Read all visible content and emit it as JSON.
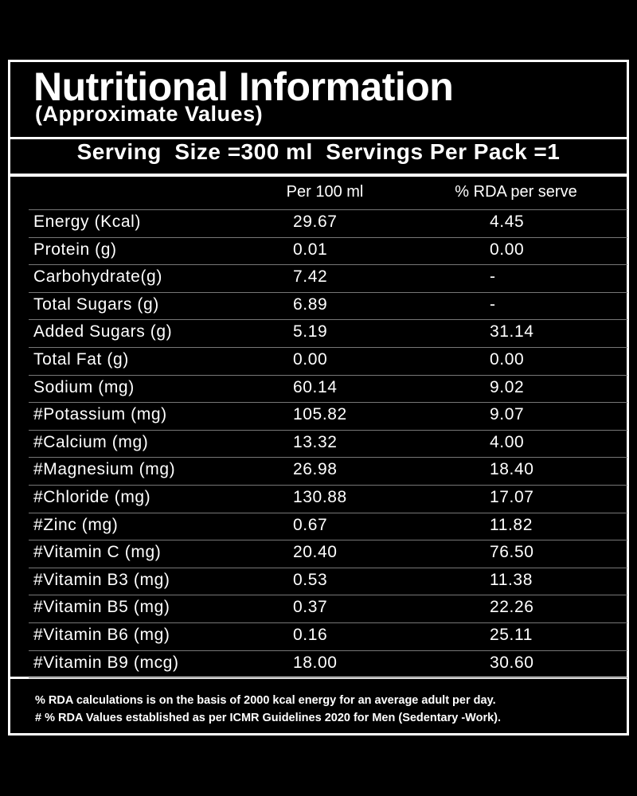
{
  "header": {
    "title": "Nutritional Information",
    "subtitle": "(Approximate Values)"
  },
  "serving": "Serving  Size =300 ml  Servings Per Pack =1",
  "table": {
    "columns": [
      "Per 100 ml",
      "% RDA per serve"
    ],
    "rows": [
      [
        "Energy (Kcal)",
        "29.67",
        "4.45"
      ],
      [
        "Protein (g)",
        "0.01",
        "0.00"
      ],
      [
        "Carbohydrate(g)",
        "7.42",
        "-"
      ],
      [
        "Total Sugars (g)",
        "6.89",
        "-"
      ],
      [
        "Added Sugars (g)",
        "5.19",
        "31.14"
      ],
      [
        "Total Fat (g)",
        "0.00",
        "0.00"
      ],
      [
        "Sodium (mg)",
        "60.14",
        "9.02"
      ],
      [
        "#Potassium (mg)",
        "105.82",
        "9.07"
      ],
      [
        "#Calcium (mg)",
        "13.32",
        "4.00"
      ],
      [
        "#Magnesium (mg)",
        "26.98",
        "18.40"
      ],
      [
        "#Chloride (mg)",
        "130.88",
        "17.07"
      ],
      [
        "#Zinc (mg)",
        "0.67",
        "11.82"
      ],
      [
        "#Vitamin C (mg)",
        "20.40",
        "76.50"
      ],
      [
        "#Vitamin B3 (mg)",
        "0.53",
        "11.38"
      ],
      [
        "#Vitamin B5 (mg)",
        "0.37",
        "22.26"
      ],
      [
        "#Vitamin B6 (mg)",
        "0.16",
        "25.11"
      ],
      [
        "#Vitamin B9 (mcg)",
        "18.00",
        "30.60"
      ]
    ]
  },
  "footnotes": [
    "% RDA calculations is on the basis of 2000 kcal energy for an average adult per day.",
    "# % RDA Values established as per ICMR Guidelines 2020 for Men (Sedentary -Work)."
  ]
}
